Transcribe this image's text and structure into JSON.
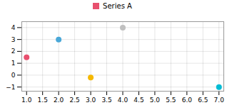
{
  "chart_data": {
    "type": "scatter",
    "title": "",
    "series": [
      {
        "name": "Series A",
        "color": "#e8506e",
        "x": [
          1.0,
          2.0,
          4.0,
          3.0,
          7.0
        ],
        "values": [
          1.5,
          3.0,
          4.0,
          -0.2,
          -1.0
        ],
        "colors": [
          "#e8506e",
          "#4aa8d8",
          "#c0c0c0",
          "#f5b800",
          "#00bcd4"
        ]
      }
    ],
    "xlim": [
      0.85,
      7.15
    ],
    "ylim": [
      -1.35,
      4.5
    ],
    "xticks": [
      {
        "value": 1,
        "label": "1.0"
      },
      1.5,
      {
        "value": 2,
        "label": "2.0"
      },
      2.5,
      {
        "value": 3,
        "label": "3.0"
      },
      3.5,
      {
        "value": 4,
        "label": "4.0"
      },
      4.5,
      {
        "value": 5,
        "label": "5.0"
      },
      5.5,
      {
        "value": 6,
        "label": "6.0"
      },
      6.5,
      {
        "value": 7,
        "label": "7.0"
      }
    ],
    "yticks": [
      -1,
      0,
      1,
      2,
      3,
      4
    ],
    "grid": true,
    "legend": "top"
  }
}
